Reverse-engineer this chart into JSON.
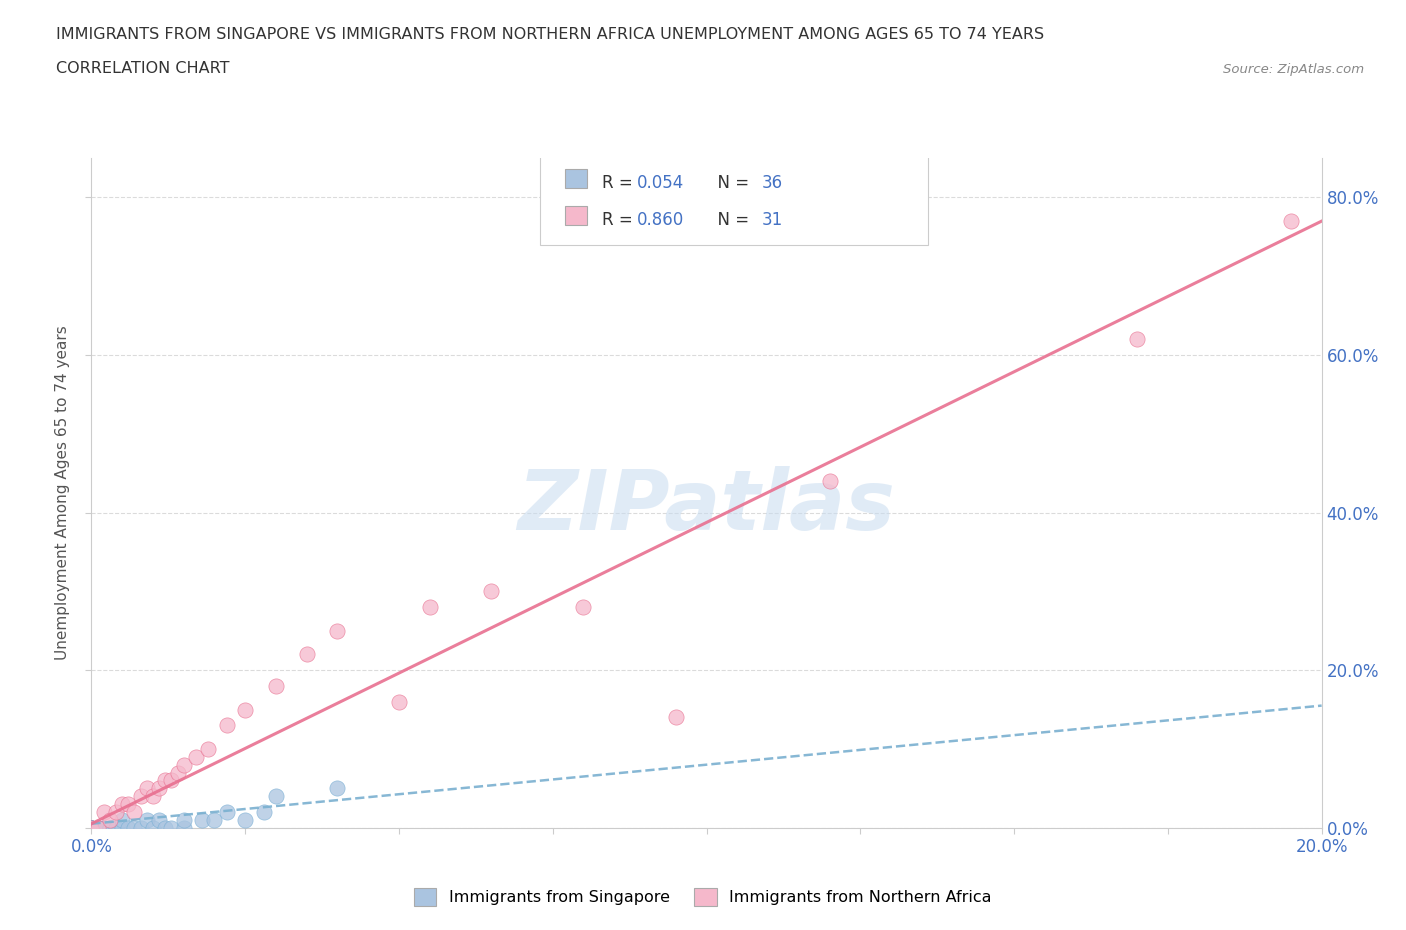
{
  "title_line1": "IMMIGRANTS FROM SINGAPORE VS IMMIGRANTS FROM NORTHERN AFRICA UNEMPLOYMENT AMONG AGES 65 TO 74 YEARS",
  "title_line2": "CORRELATION CHART",
  "source_text": "Source: ZipAtlas.com",
  "ylabel": "Unemployment Among Ages 65 to 74 years",
  "xlim": [
    0.0,
    0.2
  ],
  "ylim": [
    0.0,
    0.85
  ],
  "singapore_color": "#aac4e0",
  "singapore_edge": "#7aafd4",
  "northern_africa_color": "#f5b8cb",
  "northern_africa_edge": "#e87090",
  "singapore_line_color": "#7ab0d0",
  "northern_africa_line_color": "#e87090",
  "singapore_R": 0.054,
  "singapore_N": 36,
  "northern_africa_R": 0.86,
  "northern_africa_N": 31,
  "watermark": "ZIPatlas",
  "background_color": "#ffffff",
  "grid_color": "#d8d8d8",
  "axis_label_color": "#4472c4",
  "legend_R_color": "#4472c4",
  "singapore_scatter": [
    [
      0.0,
      0.0
    ],
    [
      0.0,
      0.0
    ],
    [
      0.0,
      0.0
    ],
    [
      0.0,
      0.0
    ],
    [
      0.0,
      0.0
    ],
    [
      0.0,
      0.0
    ],
    [
      0.0,
      0.0
    ],
    [
      0.0,
      0.0
    ],
    [
      0.0,
      0.0
    ],
    [
      0.0,
      0.0
    ],
    [
      0.001,
      0.0
    ],
    [
      0.001,
      0.0
    ],
    [
      0.002,
      0.0
    ],
    [
      0.002,
      0.0
    ],
    [
      0.003,
      0.0
    ],
    [
      0.003,
      0.0
    ],
    [
      0.004,
      0.0
    ],
    [
      0.005,
      0.0
    ],
    [
      0.005,
      0.01
    ],
    [
      0.006,
      0.0
    ],
    [
      0.007,
      0.0
    ],
    [
      0.008,
      0.0
    ],
    [
      0.009,
      0.01
    ],
    [
      0.01,
      0.0
    ],
    [
      0.011,
      0.01
    ],
    [
      0.012,
      0.0
    ],
    [
      0.013,
      0.0
    ],
    [
      0.015,
      0.0
    ],
    [
      0.015,
      0.01
    ],
    [
      0.018,
      0.01
    ],
    [
      0.02,
      0.01
    ],
    [
      0.022,
      0.02
    ],
    [
      0.025,
      0.01
    ],
    [
      0.028,
      0.02
    ],
    [
      0.03,
      0.04
    ],
    [
      0.04,
      0.05
    ]
  ],
  "northern_africa_scatter": [
    [
      0.0,
      0.0
    ],
    [
      0.001,
      0.0
    ],
    [
      0.002,
      0.02
    ],
    [
      0.003,
      0.01
    ],
    [
      0.004,
      0.02
    ],
    [
      0.005,
      0.03
    ],
    [
      0.006,
      0.03
    ],
    [
      0.007,
      0.02
    ],
    [
      0.008,
      0.04
    ],
    [
      0.009,
      0.05
    ],
    [
      0.01,
      0.04
    ],
    [
      0.011,
      0.05
    ],
    [
      0.012,
      0.06
    ],
    [
      0.013,
      0.06
    ],
    [
      0.014,
      0.07
    ],
    [
      0.015,
      0.08
    ],
    [
      0.017,
      0.09
    ],
    [
      0.019,
      0.1
    ],
    [
      0.022,
      0.13
    ],
    [
      0.025,
      0.15
    ],
    [
      0.03,
      0.18
    ],
    [
      0.035,
      0.22
    ],
    [
      0.04,
      0.25
    ],
    [
      0.05,
      0.16
    ],
    [
      0.055,
      0.28
    ],
    [
      0.065,
      0.3
    ],
    [
      0.08,
      0.28
    ],
    [
      0.095,
      0.14
    ],
    [
      0.12,
      0.44
    ],
    [
      0.17,
      0.62
    ],
    [
      0.195,
      0.77
    ]
  ],
  "sg_trend": [
    0.0,
    0.2,
    0.005,
    0.155
  ],
  "na_trend": [
    0.0,
    0.2,
    0.005,
    0.77
  ],
  "xtick_positions": [
    0.0,
    0.025,
    0.05,
    0.075,
    0.1,
    0.125,
    0.15,
    0.175,
    0.2
  ],
  "ytick_positions": [
    0.0,
    0.2,
    0.4,
    0.6,
    0.8
  ],
  "ytick_labels": [
    "0.0%",
    "20.0%",
    "40.0%",
    "60.0%",
    "80.0%"
  ]
}
